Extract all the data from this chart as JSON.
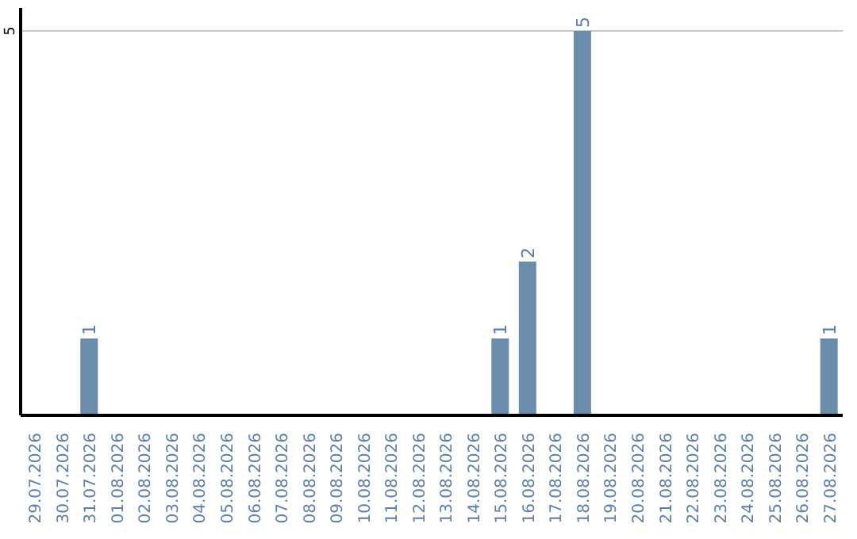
{
  "chart_data": {
    "type": "bar",
    "categories": [
      "29.07.2026",
      "30.07.2026",
      "31.07.2026",
      "01.08.2026",
      "02.08.2026",
      "03.08.2026",
      "04.08.2026",
      "05.08.2026",
      "06.08.2026",
      "07.08.2026",
      "08.08.2026",
      "09.08.2026",
      "10.08.2026",
      "11.08.2026",
      "12.08.2026",
      "13.08.2026",
      "14.08.2026",
      "15.08.2026",
      "16.08.2026",
      "17.08.2026",
      "18.08.2026",
      "19.08.2026",
      "20.08.2026",
      "21.08.2026",
      "22.08.2026",
      "23.08.2026",
      "24.08.2026",
      "25.08.2026",
      "26.08.2026",
      "27.08.2026"
    ],
    "values": [
      0,
      0,
      1,
      0,
      0,
      0,
      0,
      0,
      0,
      0,
      0,
      0,
      0,
      0,
      0,
      0,
      0,
      1,
      2,
      0,
      5,
      0,
      0,
      0,
      0,
      0,
      0,
      0,
      0,
      1
    ],
    "value_labels": [
      null,
      null,
      "1",
      null,
      null,
      null,
      null,
      null,
      null,
      null,
      null,
      null,
      null,
      null,
      null,
      null,
      null,
      "1",
      "2",
      null,
      "5",
      null,
      null,
      null,
      null,
      null,
      null,
      null,
      null,
      "1"
    ],
    "color": "#6b8cab",
    "ylim": [
      0,
      5.3
    ],
    "yticks": [
      5
    ],
    "grid": "y"
  }
}
